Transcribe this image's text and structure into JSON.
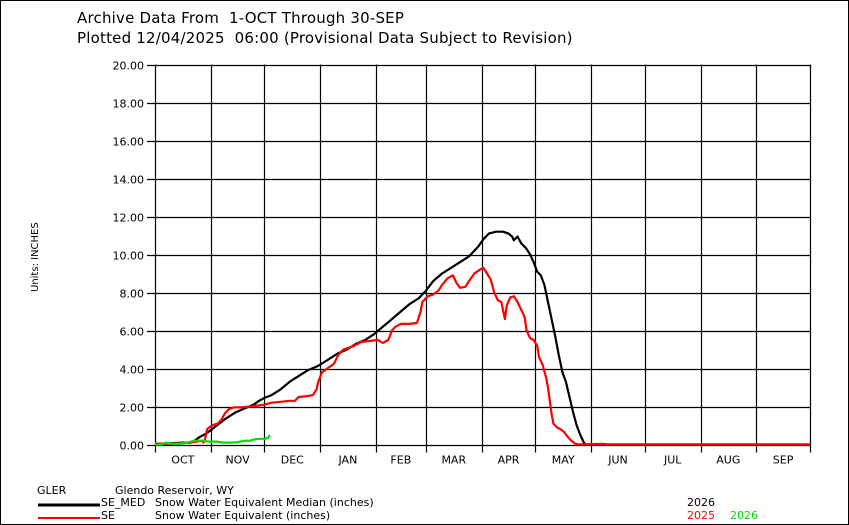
{
  "header": {
    "line1": "Archive Data From  1-OCT Through 30-SEP",
    "line2": "Plotted 12/04/2025  06:00 (Provisional Data Subject to Revision)"
  },
  "footer": {
    "station_id": "GLER",
    "station_name": "Glendo Reservoir, WY",
    "legend": [
      {
        "code": "SE_MED",
        "desc": "Snow Water Equivalent Median (inches)",
        "color": "#000000",
        "years": [
          {
            "label": "2026",
            "color": "#000000"
          }
        ]
      },
      {
        "code": "SE",
        "desc": "Snow Water Equivalent (inches)",
        "color": "#ff0000",
        "years": [
          {
            "label": "2025",
            "color": "#ff0000"
          },
          {
            "label": "2026",
            "color": "#00dd00"
          }
        ]
      }
    ]
  },
  "chart_data": {
    "type": "line",
    "title": "Archive Data From 1-OCT Through 30-SEP",
    "xlabel": "",
    "ylabel": "Units: INCHES",
    "ylim": [
      0,
      20
    ],
    "yticks": [
      "0.00",
      "2.00",
      "4.00",
      "6.00",
      "8.00",
      "10.00",
      "12.00",
      "14.00",
      "16.00",
      "18.00",
      "20.00"
    ],
    "ytick_values": [
      0,
      2,
      4,
      6,
      8,
      10,
      12,
      14,
      16,
      18,
      20
    ],
    "x_unit": "day of water year (0 = 1-OCT)",
    "xlim": [
      0,
      365
    ],
    "month_starts": [
      0,
      31,
      61,
      92,
      123,
      151,
      182,
      212,
      243,
      273,
      304,
      335,
      365
    ],
    "month_labels": [
      "OCT",
      "NOV",
      "DEC",
      "JAN",
      "FEB",
      "MAR",
      "APR",
      "MAY",
      "JUN",
      "JUL",
      "AUG",
      "SEP"
    ],
    "grid": true,
    "series": [
      {
        "name": "SE_MED Snow Water Equivalent Median (inches) 2026",
        "color": "#000000",
        "points": [
          [
            0,
            0.0
          ],
          [
            5,
            0.05
          ],
          [
            15,
            0.1
          ],
          [
            20,
            0.1
          ],
          [
            22,
            0.2
          ],
          [
            25,
            0.4
          ],
          [
            28,
            0.55
          ],
          [
            31,
            0.75
          ],
          [
            35,
            1.05
          ],
          [
            40,
            1.4
          ],
          [
            45,
            1.7
          ],
          [
            50,
            1.9
          ],
          [
            55,
            2.1
          ],
          [
            58,
            2.3
          ],
          [
            61,
            2.45
          ],
          [
            65,
            2.6
          ],
          [
            70,
            2.9
          ],
          [
            75,
            3.3
          ],
          [
            80,
            3.6
          ],
          [
            85,
            3.9
          ],
          [
            90,
            4.1
          ],
          [
            92,
            4.2
          ],
          [
            97,
            4.5
          ],
          [
            102,
            4.8
          ],
          [
            107,
            5.0
          ],
          [
            112,
            5.3
          ],
          [
            117,
            5.5
          ],
          [
            122,
            5.8
          ],
          [
            127,
            6.2
          ],
          [
            132,
            6.6
          ],
          [
            137,
            7.0
          ],
          [
            142,
            7.4
          ],
          [
            147,
            7.7
          ],
          [
            151,
            8.1
          ],
          [
            155,
            8.6
          ],
          [
            160,
            9.0
          ],
          [
            165,
            9.3
          ],
          [
            170,
            9.6
          ],
          [
            175,
            9.9
          ],
          [
            180,
            10.4
          ],
          [
            183,
            10.8
          ],
          [
            186,
            11.1
          ],
          [
            190,
            11.2
          ],
          [
            194,
            11.2
          ],
          [
            197,
            11.1
          ],
          [
            199,
            10.95
          ],
          [
            200,
            10.75
          ],
          [
            202,
            10.95
          ],
          [
            204,
            10.6
          ],
          [
            207,
            10.3
          ],
          [
            209,
            10.0
          ],
          [
            211,
            9.6
          ],
          [
            213,
            9.1
          ],
          [
            215,
            8.9
          ],
          [
            217,
            8.4
          ],
          [
            219,
            7.5
          ],
          [
            221,
            6.6
          ],
          [
            223,
            5.7
          ],
          [
            225,
            4.7
          ],
          [
            227,
            3.8
          ],
          [
            229,
            3.3
          ],
          [
            231,
            2.5
          ],
          [
            233,
            1.7
          ],
          [
            235,
            1.0
          ],
          [
            237,
            0.5
          ],
          [
            239,
            0.1
          ],
          [
            240,
            0.0
          ],
          [
            365,
            0.0
          ]
        ]
      },
      {
        "name": "SE Snow Water Equivalent (inches) 2025",
        "color": "#ff0000",
        "points": [
          [
            0,
            0.05
          ],
          [
            10,
            0.05
          ],
          [
            20,
            0.1
          ],
          [
            26,
            0.2
          ],
          [
            27,
            0.1
          ],
          [
            28,
            0.3
          ],
          [
            29,
            0.8
          ],
          [
            31,
            0.95
          ],
          [
            33,
            1.05
          ],
          [
            35,
            1.1
          ],
          [
            37,
            1.3
          ],
          [
            39,
            1.65
          ],
          [
            41,
            1.85
          ],
          [
            44,
            1.95
          ],
          [
            48,
            1.95
          ],
          [
            53,
            2.0
          ],
          [
            57,
            2.05
          ],
          [
            61,
            2.1
          ],
          [
            65,
            2.2
          ],
          [
            70,
            2.25
          ],
          [
            75,
            2.3
          ],
          [
            78,
            2.3
          ],
          [
            80,
            2.5
          ],
          [
            85,
            2.55
          ],
          [
            88,
            2.6
          ],
          [
            90,
            2.9
          ],
          [
            91,
            3.3
          ],
          [
            93,
            3.8
          ],
          [
            96,
            4.0
          ],
          [
            99,
            4.2
          ],
          [
            100,
            4.3
          ],
          [
            102,
            4.7
          ],
          [
            105,
            5.0
          ],
          [
            110,
            5.15
          ],
          [
            115,
            5.4
          ],
          [
            120,
            5.45
          ],
          [
            124,
            5.5
          ],
          [
            127,
            5.35
          ],
          [
            130,
            5.5
          ],
          [
            132,
            6.0
          ],
          [
            134,
            6.2
          ],
          [
            137,
            6.35
          ],
          [
            142,
            6.35
          ],
          [
            146,
            6.4
          ],
          [
            148,
            7.0
          ],
          [
            149,
            7.5
          ],
          [
            152,
            7.8
          ],
          [
            155,
            7.9
          ],
          [
            158,
            8.1
          ],
          [
            160,
            8.4
          ],
          [
            163,
            8.75
          ],
          [
            166,
            8.9
          ],
          [
            168,
            8.5
          ],
          [
            170,
            8.25
          ],
          [
            173,
            8.3
          ],
          [
            175,
            8.6
          ],
          [
            178,
            9.0
          ],
          [
            181,
            9.2
          ],
          [
            183,
            9.3
          ],
          [
            185,
            9.0
          ],
          [
            187,
            8.7
          ],
          [
            189,
            8.0
          ],
          [
            191,
            7.6
          ],
          [
            193,
            7.5
          ],
          [
            195,
            6.6
          ],
          [
            196,
            7.3
          ],
          [
            198,
            7.75
          ],
          [
            200,
            7.8
          ],
          [
            202,
            7.5
          ],
          [
            204,
            7.1
          ],
          [
            206,
            6.7
          ],
          [
            207,
            6.0
          ],
          [
            209,
            5.6
          ],
          [
            211,
            5.5
          ],
          [
            213,
            5.2
          ],
          [
            214,
            4.6
          ],
          [
            216,
            4.2
          ],
          [
            218,
            3.5
          ],
          [
            219,
            3.0
          ],
          [
            220,
            2.3
          ],
          [
            221,
            1.6
          ],
          [
            222,
            1.1
          ],
          [
            224,
            0.9
          ],
          [
            226,
            0.8
          ],
          [
            228,
            0.65
          ],
          [
            230,
            0.4
          ],
          [
            232,
            0.2
          ],
          [
            234,
            0.05
          ],
          [
            236,
            0.0
          ],
          [
            250,
            0.03
          ],
          [
            252,
            0.0
          ],
          [
            365,
            0.0
          ]
        ]
      },
      {
        "name": "SE Snow Water Equivalent (inches) 2026",
        "color": "#00dd00",
        "points": [
          [
            0,
            0.0
          ],
          [
            4,
            0.0
          ],
          [
            6,
            0.1
          ],
          [
            9,
            0.05
          ],
          [
            14,
            0.05
          ],
          [
            18,
            0.1
          ],
          [
            22,
            0.2
          ],
          [
            26,
            0.2
          ],
          [
            30,
            0.15
          ],
          [
            34,
            0.15
          ],
          [
            38,
            0.1
          ],
          [
            42,
            0.1
          ],
          [
            46,
            0.12
          ],
          [
            50,
            0.2
          ],
          [
            53,
            0.2
          ],
          [
            56,
            0.28
          ],
          [
            59,
            0.3
          ],
          [
            61,
            0.3
          ],
          [
            63,
            0.35
          ],
          [
            64,
            0.5
          ]
        ]
      }
    ]
  }
}
